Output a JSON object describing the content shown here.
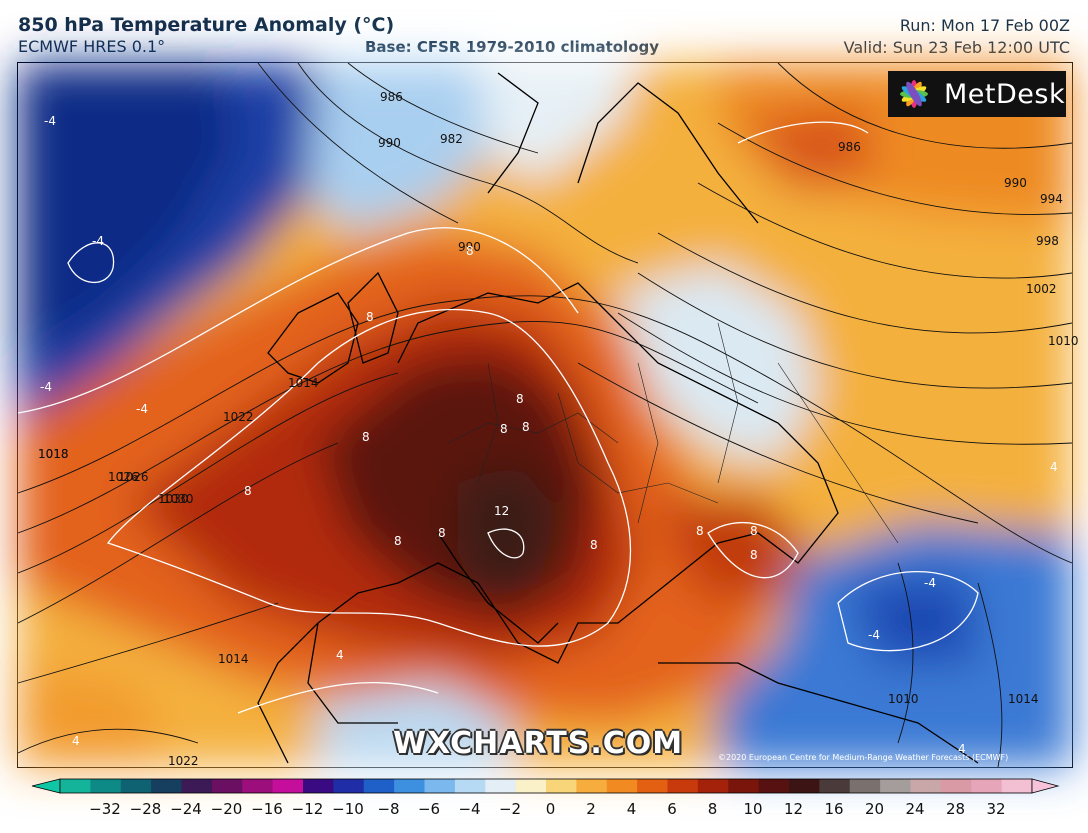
{
  "header": {
    "title": "850 hPa Temperature Anomaly (°C)",
    "model": "ECMWF HRES 0.1°",
    "base": "Base: CFSR 1979-2010 climatology",
    "run": "Run: Mon 17 Feb 00Z",
    "valid": "Valid: Sun 23 Feb 12:00 UTC"
  },
  "logo": {
    "text": "MetDesk"
  },
  "watermark": "WXCHARTS.COM",
  "copyright": "©2020 European Centre for Medium-Range Weather Forecasts (ECMWF)",
  "isobar_labels": [
    "982",
    "986",
    "990",
    "986",
    "990",
    "994",
    "998",
    "1002",
    "1010",
    "990",
    "1014",
    "1018",
    "1022",
    "1026",
    "1030",
    "1018",
    "1026",
    "1030",
    "1022",
    "1014",
    "1014",
    "1010"
  ],
  "anomaly_labels": [
    "-4",
    "-4",
    "-4",
    "-4",
    "8",
    "8",
    "8",
    "8",
    "8",
    "8",
    "8",
    "8",
    "8",
    "8",
    "8",
    "12",
    "8",
    "8",
    "-4",
    "-4",
    "4",
    "4",
    "4",
    "4"
  ],
  "colorbar": {
    "ticks": [
      "−32",
      "−28",
      "−24",
      "−20",
      "−16",
      "−12",
      "−10",
      "−8",
      "−6",
      "−4",
      "−2",
      "0",
      "2",
      "4",
      "6",
      "8",
      "10",
      "12",
      "16",
      "20",
      "24",
      "28",
      "32"
    ],
    "colors": [
      "#14b49b",
      "#0d8a86",
      "#0e6272",
      "#153e5f",
      "#3b1a55",
      "#6a0f62",
      "#9c0e7c",
      "#c60e9c",
      "#3a0a82",
      "#1f2ea6",
      "#1e5fc8",
      "#3d8fe0",
      "#7bb8ee",
      "#b6d9f4",
      "#e4eef6",
      "#fbf1c8",
      "#f9d57a",
      "#f7ad3d",
      "#f08a21",
      "#e35f12",
      "#c83a0b",
      "#a4210a",
      "#7a150b",
      "#571110",
      "#3c1414",
      "#4a3a39",
      "#7a706e",
      "#a49d9b",
      "#c9a7a8",
      "#d99aa6",
      "#e7a5ba",
      "#f2bfd3"
    ]
  }
}
